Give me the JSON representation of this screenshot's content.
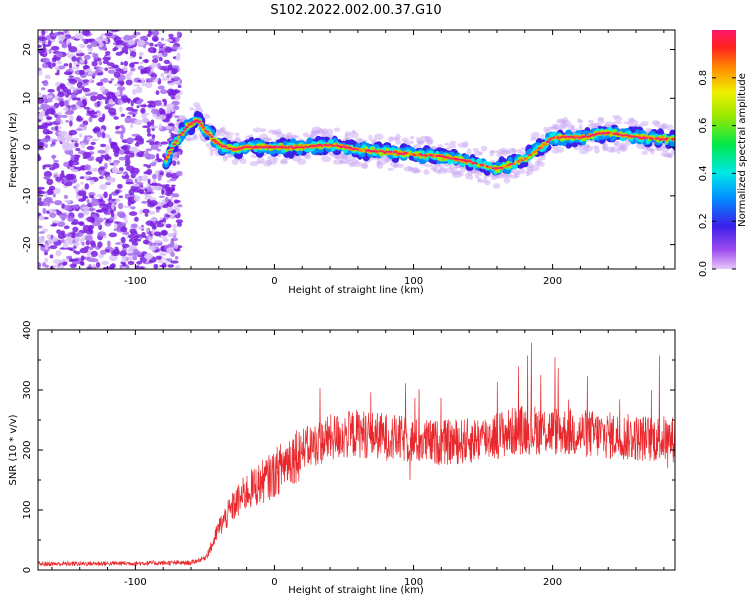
{
  "title": "S102.2022.002.00.37.G10",
  "chart_data": [
    {
      "type": "heatmap",
      "xlabel": "Height of straight line (km)",
      "ylabel": "Frequency (Hz)",
      "xlim": [
        -170,
        288
      ],
      "ylim": [
        -25,
        24
      ],
      "xticks": [
        -100,
        0,
        100,
        200
      ],
      "yticks": [
        20,
        10,
        0,
        -10,
        -20
      ],
      "colorbar": {
        "label": "Normalized spectral amplitude",
        "range": [
          0,
          1
        ],
        "ticks": [
          0.0,
          0.2,
          0.4,
          0.6,
          0.8
        ]
      },
      "ridge": {
        "x": [
          -78,
          -70,
          -62,
          -55,
          -48,
          -40,
          -30,
          -20,
          -10,
          0,
          20,
          40,
          60,
          80,
          100,
          120,
          140,
          160,
          180,
          200,
          220,
          240,
          260,
          288
        ],
        "frequency": [
          -2.5,
          1.5,
          4.5,
          5.5,
          3.0,
          0.5,
          -0.5,
          0.0,
          0.0,
          0.0,
          0.0,
          0.5,
          -0.5,
          -1.0,
          -1.5,
          -2.0,
          -3.0,
          -4.5,
          -2.5,
          2.0,
          2.0,
          3.0,
          2.0,
          1.5
        ]
      },
      "noise_region_x": [
        -170,
        -68
      ]
    },
    {
      "type": "line",
      "xlabel": "Height of straight line (km)",
      "ylabel": "SNR (10 * v/v)",
      "xlim": [
        -170,
        288
      ],
      "ylim": [
        0,
        400
      ],
      "xticks": [
        -100,
        0,
        100,
        200
      ],
      "yticks": [
        0,
        100,
        200,
        300,
        400
      ],
      "series": [
        {
          "color": "#e8282c",
          "envelope": {
            "x": [
              -170,
              -60,
              -50,
              -45,
              -40,
              -30,
              -20,
              -10,
              0,
              10,
              20,
              30,
              40,
              60,
              80,
              100,
              120,
              140,
              160,
              180,
              200,
              220,
              240,
              260,
              288
            ],
            "y": [
              10,
              12,
              20,
              40,
              70,
              105,
              130,
              145,
              160,
              185,
              200,
              210,
              220,
              228,
              222,
              215,
              212,
              215,
              225,
              235,
              232,
              228,
              224,
              220,
              218
            ]
          }
        }
      ]
    }
  ]
}
